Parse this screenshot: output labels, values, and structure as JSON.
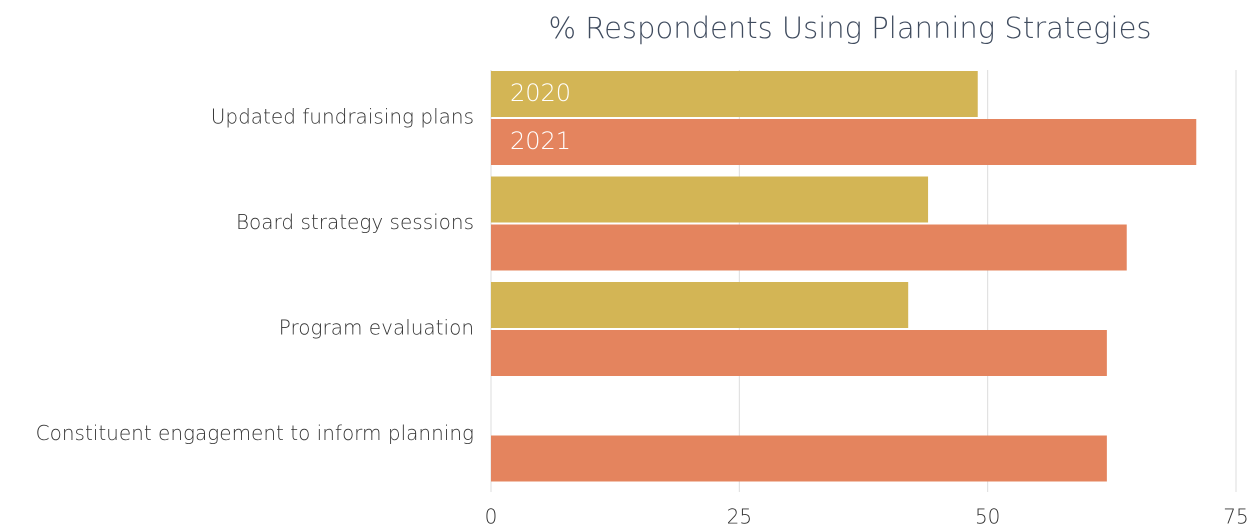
{
  "chart_data": {
    "type": "bar",
    "orientation": "horizontal",
    "title": "% Respondents Using Planning Strategies",
    "categories": [
      "Updated fundraising plans",
      "Board strategy sessions",
      "Program evaluation",
      "Constituent engagement to inform planning"
    ],
    "series": [
      {
        "name": "2020",
        "color": "#d3b555",
        "values": [
          49,
          44,
          42,
          null
        ]
      },
      {
        "name": "2021",
        "color": "#e4845e",
        "values": [
          71,
          64,
          62,
          62
        ]
      }
    ],
    "xlim": [
      0,
      75
    ],
    "xticks": [
      0,
      25,
      50,
      75
    ],
    "grid": true
  }
}
